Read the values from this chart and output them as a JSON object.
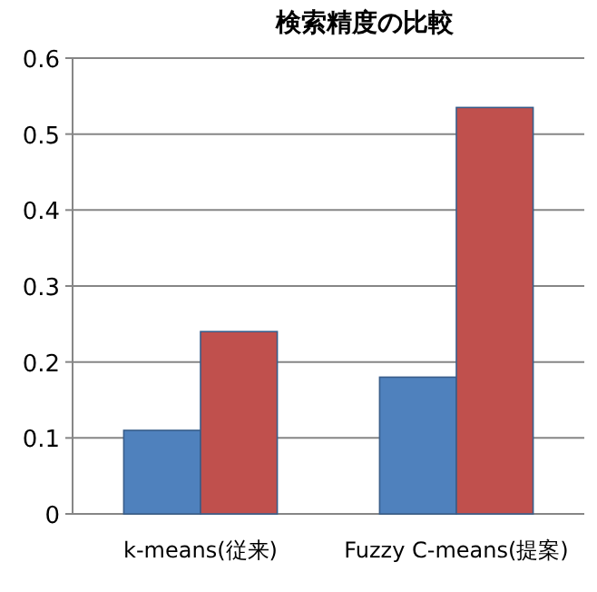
{
  "chart_data": {
    "type": "bar",
    "title": "検索精度の比較",
    "categories": [
      "k-means(従来)",
      "Fuzzy C-means(提案)"
    ],
    "series": [
      {
        "color": "#4f81bd",
        "values": [
          0.11,
          0.18
        ]
      },
      {
        "color": "#c0504d",
        "values": [
          0.24,
          0.535
        ]
      }
    ],
    "ylim": [
      0,
      0.6
    ],
    "yticks": [
      0,
      0.1,
      0.2,
      0.3,
      0.4,
      0.5,
      0.6
    ],
    "grid": "y"
  }
}
